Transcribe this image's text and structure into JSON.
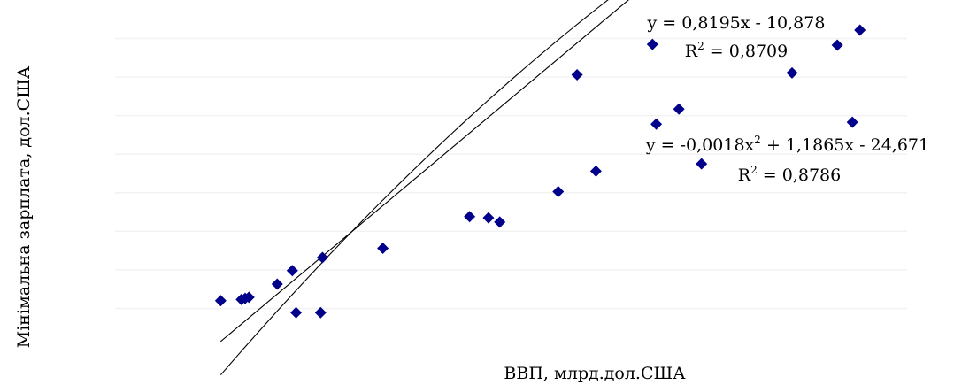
{
  "chart_data": {
    "type": "scatter",
    "xlabel": "ВВП, млрд.дол.США",
    "ylabel": "Мінімальна зарплата,  дол.США",
    "grid": "horizontal",
    "marker": "diamond",
    "colors": {
      "points": "#00008b",
      "trendlines": "#000000",
      "grid": "#f2f2f2"
    },
    "points": [
      {
        "x": 15,
        "y": 12
      },
      {
        "x": 20.5,
        "y": 12.3
      },
      {
        "x": 21.5,
        "y": 12.6
      },
      {
        "x": 22.5,
        "y": 12.9
      },
      {
        "x": 30,
        "y": 16.3
      },
      {
        "x": 34,
        "y": 19.8
      },
      {
        "x": 35,
        "y": 8.9
      },
      {
        "x": 41.5,
        "y": 8.9
      },
      {
        "x": 42,
        "y": 23.2
      },
      {
        "x": 58,
        "y": 25.6
      },
      {
        "x": 81,
        "y": 33.8
      },
      {
        "x": 86,
        "y": 33.5
      },
      {
        "x": 89,
        "y": 32.4
      },
      {
        "x": 104.5,
        "y": 40.3
      },
      {
        "x": 109.5,
        "y": 70.6
      },
      {
        "x": 114.5,
        "y": 45.6
      },
      {
        "x": 129.5,
        "y": 78.5
      },
      {
        "x": 130.5,
        "y": 57.8
      },
      {
        "x": 136.5,
        "y": 61.7
      },
      {
        "x": 142.5,
        "y": 47.5
      },
      {
        "x": 166.5,
        "y": 71.1
      },
      {
        "x": 178.5,
        "y": 78.3
      },
      {
        "x": 182.5,
        "y": 58.3
      },
      {
        "x": 184.5,
        "y": 82.2
      }
    ],
    "trendlines": [
      {
        "type": "linear",
        "coef": {
          "a": 0.8195,
          "b": -10.878
        },
        "x_range": [
          15,
          184.5
        ],
        "equation": "y = 0,8195x - 10,878",
        "r2_prefix": "R",
        "r2_sup": "2",
        "r2_value": " = 0,8709"
      },
      {
        "type": "polynomial",
        "coef": {
          "a": -0.0018,
          "b": 1.1865,
          "c": -24.671
        },
        "x_range": [
          15,
          184.5
        ],
        "equation_pre": "y = -0,0018x",
        "equation_sup": "2",
        "equation_post": " + 1,1865x - 24,671",
        "r2_prefix": "R",
        "r2_sup": "2",
        "r2_value": " = 0,8786"
      }
    ],
    "xlim": [
      -13,
      197
    ],
    "ylim": [
      0,
      90
    ],
    "grid_values": [
      10,
      20,
      30,
      40,
      50,
      60,
      70,
      80
    ]
  }
}
